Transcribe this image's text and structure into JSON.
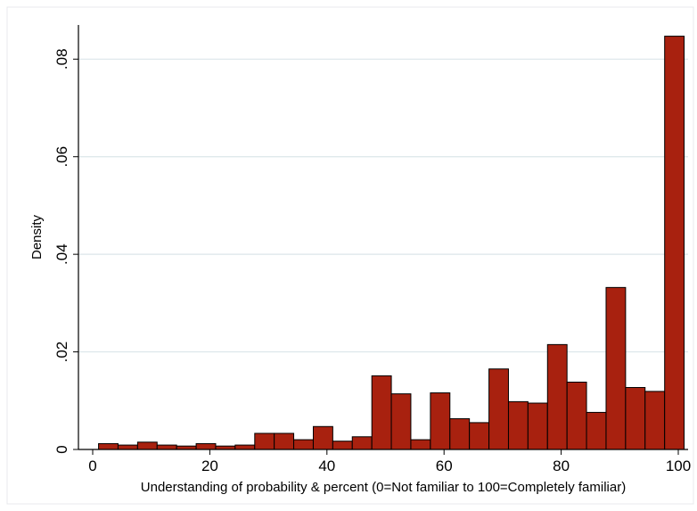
{
  "chart_data": {
    "type": "bar",
    "title": "",
    "xlabel": "Understanding of probability & percent (0=Not familiar to 100=Completely familiar)",
    "ylabel": "Density",
    "xlim": [
      0,
      100
    ],
    "ylim": [
      0,
      0.087
    ],
    "x_ticks": [
      0,
      20,
      40,
      60,
      80,
      100
    ],
    "x_tick_labels": [
      "0",
      "20",
      "40",
      "60",
      "80",
      "100"
    ],
    "y_ticks": [
      0,
      0.02,
      0.04,
      0.06,
      0.08
    ],
    "y_tick_labels": [
      "0",
      ".02",
      ".04",
      ".06",
      ".08"
    ],
    "grid": "horizontal",
    "bin_width": 3.33,
    "bin_starts": [
      1,
      4.33,
      7.67,
      11,
      14.33,
      17.67,
      21,
      24.33,
      27.67,
      31,
      34.33,
      37.67,
      41,
      44.33,
      47.67,
      51,
      54.33,
      57.67,
      61,
      64.33,
      67.67,
      71,
      74.33,
      77.67,
      81,
      84.33,
      87.67,
      91,
      94.33,
      97.67
    ],
    "values": [
      0.0012,
      0.0009,
      0.0015,
      0.0009,
      0.0007,
      0.0012,
      0.0007,
      0.0009,
      0.0033,
      0.0033,
      0.002,
      0.0047,
      0.0017,
      0.0026,
      0.0151,
      0.0114,
      0.002,
      0.0116,
      0.0063,
      0.0055,
      0.0165,
      0.0098,
      0.0095,
      0.0215,
      0.0138,
      0.0076,
      0.0332,
      0.0127,
      0.0119,
      0.0847
    ],
    "bar_color": "#a8210f",
    "bar_edge_color": "#000000",
    "grid_color": "#dce6ea"
  }
}
